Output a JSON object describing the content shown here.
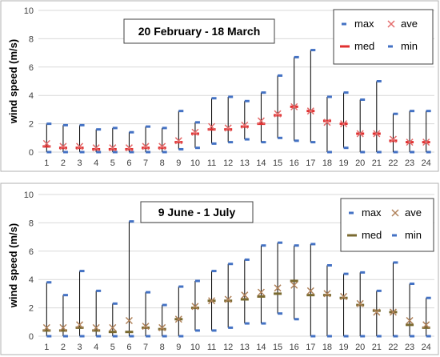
{
  "chart_data": [
    {
      "type": "box",
      "title": "20 February - 18 March",
      "ylabel": "wind speed (m/s)",
      "xlabel": "",
      "ylim": [
        0,
        10
      ],
      "yticks": [
        0,
        2,
        4,
        6,
        8,
        10
      ],
      "categories": [
        "1",
        "2",
        "3",
        "4",
        "5",
        "6",
        "7",
        "8",
        "9",
        "10",
        "11",
        "12",
        "13",
        "14",
        "15",
        "16",
        "17",
        "18",
        "19",
        "20",
        "21",
        "22",
        "23",
        "24"
      ],
      "legend": [
        "max",
        "ave",
        "med",
        "min"
      ],
      "legend_position": "top-right",
      "colors": {
        "max": "#4472c4",
        "ave": "#e46c6c",
        "med": "#e03030",
        "min": "#4472c4",
        "whisker": "#000000"
      },
      "series": [
        {
          "name": "max",
          "values": [
            2.0,
            1.9,
            1.9,
            1.6,
            1.7,
            1.4,
            1.8,
            1.7,
            2.9,
            2.1,
            3.8,
            3.9,
            3.6,
            4.2,
            5.4,
            6.7,
            7.2,
            3.9,
            4.2,
            3.7,
            5.0,
            2.7,
            2.9,
            2.9
          ]
        },
        {
          "name": "ave",
          "values": [
            0.6,
            0.4,
            0.4,
            0.3,
            0.3,
            0.3,
            0.4,
            0.4,
            0.8,
            1.4,
            1.8,
            1.7,
            1.9,
            2.2,
            2.7,
            3.2,
            2.9,
            2.1,
            2.0,
            1.3,
            1.3,
            0.9,
            0.7,
            0.7
          ]
        },
        {
          "name": "med",
          "values": [
            0.4,
            0.3,
            0.3,
            0.2,
            0.2,
            0.2,
            0.3,
            0.3,
            0.7,
            1.3,
            1.6,
            1.6,
            1.8,
            2.0,
            2.6,
            3.2,
            2.9,
            2.2,
            2.0,
            1.3,
            1.3,
            0.8,
            0.7,
            0.7
          ]
        },
        {
          "name": "min",
          "values": [
            0.0,
            0.0,
            0.0,
            0.0,
            0.0,
            0.0,
            0.0,
            0.0,
            0.2,
            0.3,
            0.6,
            0.7,
            0.9,
            0.7,
            1.0,
            0.8,
            0.7,
            0.0,
            0.3,
            0.0,
            0.0,
            0.0,
            0.0,
            0.0
          ]
        }
      ]
    },
    {
      "type": "box",
      "title": "9 June - 1 July",
      "ylabel": "wind speed (m/s)",
      "xlabel": "",
      "ylim": [
        0,
        10
      ],
      "yticks": [
        0,
        2,
        4,
        6,
        8,
        10
      ],
      "categories": [
        "1",
        "2",
        "3",
        "4",
        "5",
        "6",
        "7",
        "8",
        "9",
        "10",
        "11",
        "12",
        "13",
        "14",
        "15",
        "16",
        "17",
        "18",
        "19",
        "20",
        "21",
        "22",
        "23",
        "24"
      ],
      "legend": [
        "max",
        "ave",
        "med",
        "min"
      ],
      "legend_position": "top-right",
      "colors": {
        "max": "#4472c4",
        "ave": "#b0825a",
        "med": "#7a6a30",
        "min": "#4472c4",
        "whisker": "#000000"
      },
      "series": [
        {
          "name": "max",
          "values": [
            3.8,
            2.9,
            4.6,
            3.2,
            2.3,
            8.1,
            3.1,
            2.2,
            3.5,
            3.9,
            4.6,
            5.1,
            5.4,
            6.4,
            6.6,
            6.4,
            6.5,
            5.0,
            4.4,
            4.5,
            3.2,
            5.2,
            3.7,
            2.7
          ]
        },
        {
          "name": "ave",
          "values": [
            0.6,
            0.6,
            0.8,
            0.6,
            0.6,
            1.1,
            0.7,
            0.6,
            1.2,
            2.1,
            2.5,
            2.6,
            2.9,
            3.1,
            3.4,
            3.6,
            3.2,
            3.0,
            2.8,
            2.3,
            1.7,
            1.7,
            1.1,
            0.8
          ]
        },
        {
          "name": "med",
          "values": [
            0.4,
            0.4,
            0.6,
            0.4,
            0.3,
            0.3,
            0.6,
            0.5,
            1.2,
            2.0,
            2.5,
            2.5,
            2.6,
            2.8,
            3.0,
            3.9,
            2.9,
            2.9,
            2.7,
            2.2,
            1.8,
            1.7,
            0.8,
            0.6
          ]
        },
        {
          "name": "min",
          "values": [
            0.0,
            0.0,
            0.0,
            0.0,
            0.0,
            0.0,
            0.0,
            0.0,
            0.0,
            0.4,
            0.4,
            0.6,
            0.9,
            0.9,
            1.6,
            1.2,
            0.0,
            0.0,
            0.0,
            0.0,
            0.0,
            0.0,
            0.0,
            0.0
          ]
        }
      ]
    }
  ]
}
